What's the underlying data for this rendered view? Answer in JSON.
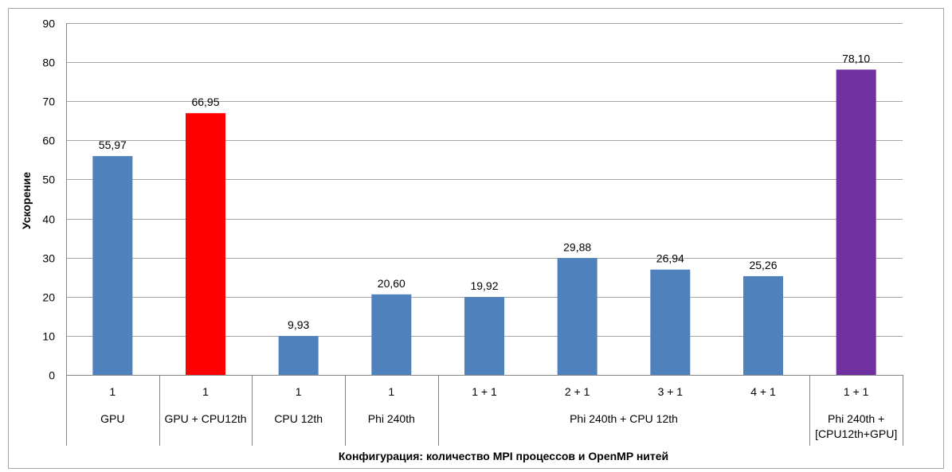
{
  "chart_data": {
    "type": "bar",
    "ylabel": "Ускорение",
    "xlabel": "Конфигурация:  количество MPI процессов и OpenMP нитей",
    "ylim": [
      0,
      90
    ],
    "yticks": [
      0,
      10,
      20,
      30,
      40,
      50,
      60,
      70,
      80,
      90
    ],
    "grid": true,
    "categories": [
      "1",
      "1",
      "1",
      "1",
      "1 + 1",
      "2 + 1",
      "3 + 1",
      "4 + 1",
      "1 + 1"
    ],
    "values": [
      55.97,
      66.95,
      9.93,
      20.6,
      19.92,
      29.88,
      26.94,
      25.26,
      78.1
    ],
    "data_labels": [
      "55,97",
      "66,95",
      "9,93",
      "20,60",
      "19,92",
      "29,88",
      "26,94",
      "25,26",
      "78,10"
    ],
    "bar_colors": [
      "#4f81bd",
      "#ff0000",
      "#4f81bd",
      "#4f81bd",
      "#4f81bd",
      "#4f81bd",
      "#4f81bd",
      "#4f81bd",
      "#7030a0"
    ],
    "groups": [
      {
        "lines": [
          "GPU"
        ],
        "first": 0,
        "last": 0
      },
      {
        "lines": [
          "GPU + CPU12th"
        ],
        "first": 1,
        "last": 1
      },
      {
        "lines": [
          "CPU 12th"
        ],
        "first": 2,
        "last": 2
      },
      {
        "lines": [
          "Phi 240th"
        ],
        "first": 3,
        "last": 3
      },
      {
        "lines": [
          "Phi 240th + CPU 12th"
        ],
        "first": 4,
        "last": 7
      },
      {
        "lines": [
          "Phi 240th +",
          "[CPU12th+GPU]"
        ],
        "first": 8,
        "last": 8
      }
    ]
  },
  "colors": {
    "grid": "#a6a6a6",
    "axis": "#868686",
    "frame": "#a6a6a6"
  }
}
